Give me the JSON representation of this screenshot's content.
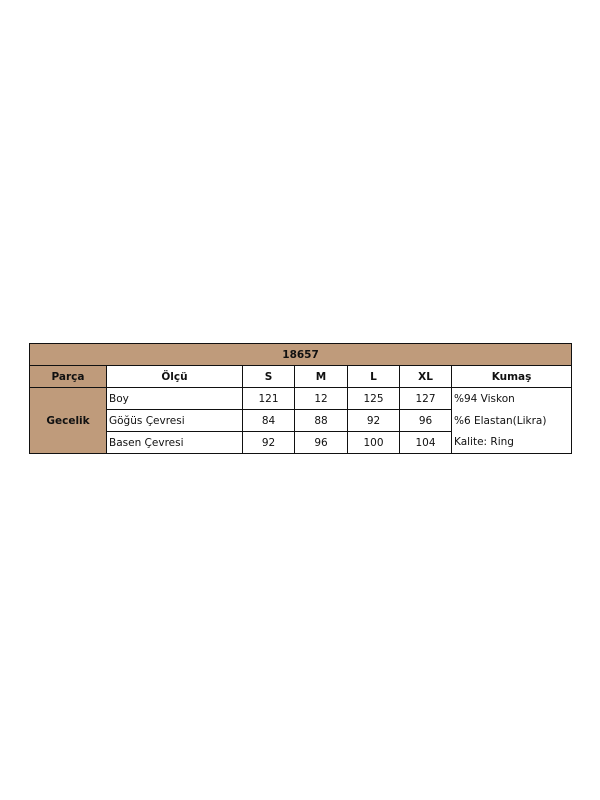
{
  "table": {
    "title": "18657",
    "headers": [
      "Parça",
      "Ölçü",
      "S",
      "M",
      "L",
      "XL",
      "Kumaş"
    ],
    "part": "Gecelik",
    "rows": [
      {
        "measure": "Boy",
        "values": [
          "121",
          "12",
          "125",
          "127"
        ],
        "fabric": "%94 Viskon"
      },
      {
        "measure": "Göğüs Çevresi",
        "values": [
          "84",
          "88",
          "92",
          "96"
        ],
        "fabric": "%6 Elastan(Likra)"
      },
      {
        "measure": "Basen Çevresi",
        "values": [
          "92",
          "96",
          "100",
          "104"
        ],
        "fabric": "Kalite: Ring"
      }
    ]
  },
  "colors": {
    "header_fill": "#bf9b7b"
  }
}
